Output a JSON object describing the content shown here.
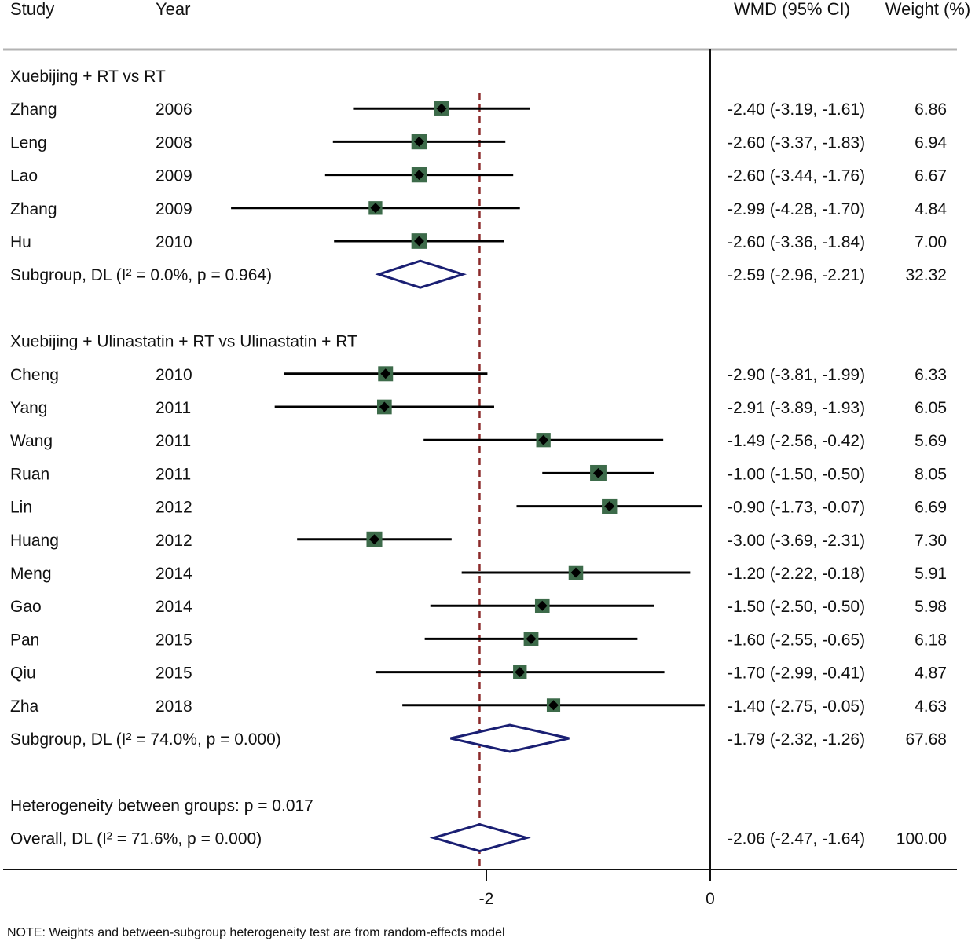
{
  "chart_data": {
    "type": "forest",
    "headers": {
      "study": "Study",
      "year": "Year",
      "effect": "WMD (95% CI)",
      "weight": "Weight (%)"
    },
    "x_axis": {
      "range": [
        -3.9,
        0.4
      ],
      "ticks": [
        {
          "value": -2,
          "label": "-2"
        },
        {
          "value": 0,
          "label": "0"
        }
      ],
      "null_line": 0,
      "overall_line": -2.06
    },
    "subgroups": [
      {
        "title": "Xuebijing + RT vs RT",
        "studies": [
          {
            "study": "Zhang",
            "year": "2006",
            "est": -2.4,
            "lo": -3.19,
            "hi": -1.61,
            "ci_text": "-2.40 (-3.19, -1.61)",
            "weight": "6.86"
          },
          {
            "study": "Leng",
            "year": "2008",
            "est": -2.6,
            "lo": -3.37,
            "hi": -1.83,
            "ci_text": "-2.60 (-3.37, -1.83)",
            "weight": "6.94"
          },
          {
            "study": "Lao",
            "year": "2009",
            "est": -2.6,
            "lo": -3.44,
            "hi": -1.76,
            "ci_text": "-2.60 (-3.44, -1.76)",
            "weight": "6.67"
          },
          {
            "study": "Zhang",
            "year": "2009",
            "est": -2.99,
            "lo": -4.28,
            "hi": -1.7,
            "ci_text": "-2.99 (-4.28, -1.70)",
            "weight": "4.84"
          },
          {
            "study": "Hu",
            "year": "2010",
            "est": -2.6,
            "lo": -3.36,
            "hi": -1.84,
            "ci_text": "-2.60 (-3.36, -1.84)",
            "weight": "7.00"
          }
        ],
        "summary": {
          "label": "Subgroup, DL (I² = 0.0%, p = 0.964)",
          "est": -2.59,
          "lo": -2.96,
          "hi": -2.21,
          "ci_text": "-2.59 (-2.96, -2.21)",
          "weight": "32.32"
        }
      },
      {
        "title": "Xuebijing + Ulinastatin + RT vs Ulinastatin + RT",
        "studies": [
          {
            "study": "Cheng",
            "year": "2010",
            "est": -2.9,
            "lo": -3.81,
            "hi": -1.99,
            "ci_text": "-2.90 (-3.81, -1.99)",
            "weight": "6.33"
          },
          {
            "study": "Yang",
            "year": "2011",
            "est": -2.91,
            "lo": -3.89,
            "hi": -1.93,
            "ci_text": "-2.91 (-3.89, -1.93)",
            "weight": "6.05"
          },
          {
            "study": "Wang",
            "year": "2011",
            "est": -1.49,
            "lo": -2.56,
            "hi": -0.42,
            "ci_text": "-1.49 (-2.56, -0.42)",
            "weight": "5.69"
          },
          {
            "study": "Ruan",
            "year": "2011",
            "est": -1.0,
            "lo": -1.5,
            "hi": -0.5,
            "ci_text": "-1.00 (-1.50, -0.50)",
            "weight": "8.05"
          },
          {
            "study": "Lin",
            "year": "2012",
            "est": -0.9,
            "lo": -1.73,
            "hi": -0.07,
            "ci_text": "-0.90 (-1.73, -0.07)",
            "weight": "6.69"
          },
          {
            "study": "Huang",
            "year": "2012",
            "est": -3.0,
            "lo": -3.69,
            "hi": -2.31,
            "ci_text": "-3.00 (-3.69, -2.31)",
            "weight": "7.30"
          },
          {
            "study": "Meng",
            "year": "2014",
            "est": -1.2,
            "lo": -2.22,
            "hi": -0.18,
            "ci_text": "-1.20 (-2.22, -0.18)",
            "weight": "5.91"
          },
          {
            "study": "Gao",
            "year": "2014",
            "est": -1.5,
            "lo": -2.5,
            "hi": -0.5,
            "ci_text": "-1.50 (-2.50, -0.50)",
            "weight": "5.98"
          },
          {
            "study": "Pan",
            "year": "2015",
            "est": -1.6,
            "lo": -2.55,
            "hi": -0.65,
            "ci_text": "-1.60 (-2.55, -0.65)",
            "weight": "6.18"
          },
          {
            "study": "Qiu",
            "year": "2015",
            "est": -1.7,
            "lo": -2.99,
            "hi": -0.41,
            "ci_text": "-1.70 (-2.99, -0.41)",
            "weight": "4.87"
          },
          {
            "study": "Zha",
            "year": "2018",
            "est": -1.4,
            "lo": -2.75,
            "hi": -0.05,
            "ci_text": "-1.40 (-2.75, -0.05)",
            "weight": "4.63"
          }
        ],
        "summary": {
          "label": "Subgroup, DL (I² = 74.0%, p = 0.000)",
          "est": -1.79,
          "lo": -2.32,
          "hi": -1.26,
          "ci_text": "-1.79 (-2.32, -1.26)",
          "weight": "67.68"
        }
      }
    ],
    "heterogeneity_label": "Heterogeneity between groups: p = 0.017",
    "overall": {
      "label": "Overall, DL (I² = 71.6%, p = 0.000)",
      "est": -2.06,
      "lo": -2.47,
      "hi": -1.64,
      "ci_text": "-2.06 (-2.47, -1.64)",
      "weight": "100.00"
    },
    "note": "NOTE: Weights and between-subgroup heterogeneity test are from random-effects model",
    "colors": {
      "marker_box": "#3d6b4a",
      "marker_dot": "#000000",
      "ci_line": "#000000",
      "diamond": "#1a1f73",
      "overall_line": "#8b2a2a",
      "axis": "#111111",
      "rule": "#b3b3b3"
    }
  }
}
